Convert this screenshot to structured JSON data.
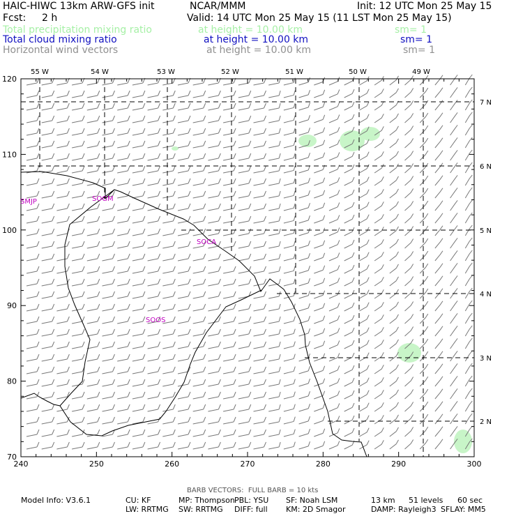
{
  "header": {
    "model": "HAIC-HIWC 13km ARW-GFS init",
    "org": "NCAR/MMM",
    "init": "Init: 12 UTC Mon 25 May 15",
    "fcst_label": "Fcst:",
    "fcst_value": "2 h",
    "valid": "Valid: 14 UTC Mon 25 May 15 (11 LST Mon 25 May 15)"
  },
  "fields": [
    {
      "name": "Total precipitation mixing ratio",
      "height": "at height = 10.00 km",
      "sm": "sm= 1",
      "color": "#a6f0a6"
    },
    {
      "name": "Total cloud mixing ratio",
      "height": "at height = 10.00 km",
      "sm": "sm= 1",
      "color": "#1010c0"
    },
    {
      "name": "Horizontal wind vectors",
      "height": "at height = 10.00 km",
      "sm": "sm= 1",
      "color": "#909090"
    }
  ],
  "map": {
    "lon_labels": [
      "55 W",
      "54 W",
      "53 W",
      "52 W",
      "51 W",
      "50 W",
      "49 W"
    ],
    "lat_labels": [
      "7 N",
      "6 N",
      "5 N",
      "4 N",
      "3 N",
      "2 N"
    ],
    "x_ticks": [
      "240",
      "250",
      "260",
      "270",
      "280",
      "290",
      "300"
    ],
    "y_ticks": [
      "70",
      "80",
      "90",
      "100",
      "110",
      "120"
    ],
    "stations": [
      "SMJP",
      "SOGM",
      "SOCA",
      "SOOS"
    ],
    "precip_color": "#c8f5c8"
  },
  "footer": {
    "barb": "BARB VECTORS:  FULL BARB = 10 kts",
    "line1": [
      "Model Info: V3.6.1",
      "CU: KF",
      "MP: Thompson",
      "PBL: YSU",
      "SF: Noah LSM",
      "13 km",
      "51 levels",
      "60 sec"
    ],
    "line2": [
      "LW: RRTMG",
      "SW: RRTMG",
      "DIFF: full",
      "KM: 2D Smagor",
      "DAMP: Rayleigh3",
      "SFLAY: MM5"
    ]
  }
}
